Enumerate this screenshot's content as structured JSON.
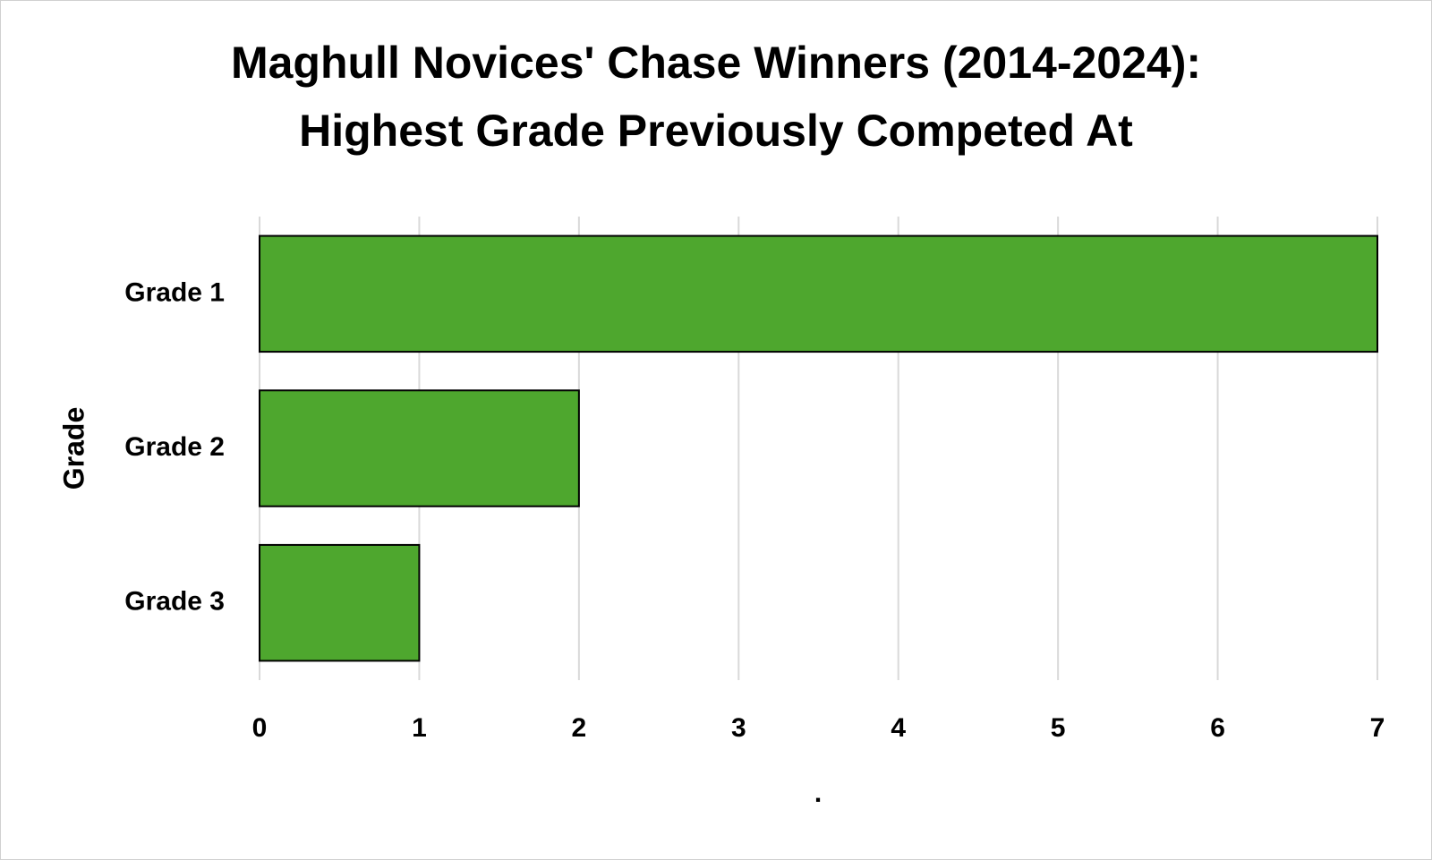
{
  "chart_data": {
    "type": "bar",
    "orientation": "horizontal",
    "title": [
      "Maghull Novices' Chase Winners (2014-2024):",
      "Highest Grade Previously Competed At"
    ],
    "xlabel": ".",
    "ylabel": "Grade",
    "categories": [
      "Grade 1",
      "Grade 2",
      "Grade 3"
    ],
    "values": [
      7,
      2,
      1
    ],
    "color": "#4ea72e",
    "xlim": [
      0,
      7
    ],
    "xticks": [
      0,
      1,
      2,
      3,
      4,
      5,
      6,
      7
    ],
    "grid": true
  }
}
